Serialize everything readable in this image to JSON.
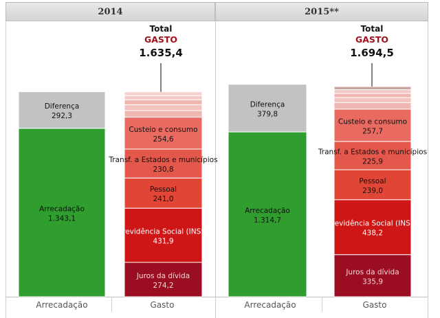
{
  "chart_data": [
    {
      "type": "bar",
      "title": "2014",
      "categories": [
        "Arrecadação",
        "Gasto"
      ],
      "arrecadacao": [
        {
          "name": "Arrecadação",
          "value_label": "1.343,1",
          "value": 1343.1,
          "color": "#2f9e2f",
          "text_color": "#111111"
        },
        {
          "name": "Diferença",
          "value_label": "292,3",
          "value": 292.3,
          "color": "#c2c2c2",
          "text_color": "#111111"
        }
      ],
      "gasto": [
        {
          "name": "Juros da dívida",
          "value_label": "274,2",
          "value": 274.2,
          "color": "#9b0e22",
          "text_color": "#f4d6d6"
        },
        {
          "name": "Previdência Social (INSS)",
          "value_label": "431,9",
          "value": 431.9,
          "color": "#cf1616",
          "text_color": "#ffffff"
        },
        {
          "name": "Pessoal",
          "value_label": "241,0",
          "value": 241.0,
          "color": "#e04535",
          "text_color": "#111111"
        },
        {
          "name": "Transf. a Estados e municípios",
          "value_label": "230,8",
          "value": 230.8,
          "color": "#e4574b",
          "text_color": "#111111"
        },
        {
          "name": "Custeio e consumo",
          "value_label": "254,6",
          "value": 254.6,
          "color": "#e86a60",
          "text_color": "#111111"
        },
        {
          "name": "",
          "value": 52.0,
          "color": "#f0b6b2"
        },
        {
          "name": "",
          "value": 47.0,
          "color": "#f3c3bf"
        },
        {
          "name": "",
          "value": 40.0,
          "color": "#f0b6b2"
        },
        {
          "name": "",
          "value": 33.0,
          "color": "#f4c9c5"
        },
        {
          "name": "",
          "value": 30.0,
          "color": "#f6d2cf"
        }
      ],
      "total_label": "Total",
      "total_sub": "GASTO",
      "total_value": "1.635,4",
      "total": 1635.4
    },
    {
      "type": "bar",
      "title": "2015**",
      "categories": [
        "Arrecadação",
        "Gasto"
      ],
      "arrecadacao": [
        {
          "name": "Arrecadação",
          "value_label": "1.314,7",
          "value": 1314.7,
          "color": "#2f9e2f",
          "text_color": "#111111"
        },
        {
          "name": "Diferença",
          "value_label": "379,8",
          "value": 379.8,
          "color": "#c2c2c2",
          "text_color": "#111111"
        }
      ],
      "gasto": [
        {
          "name": "Juros da dívida",
          "value_label": "335,9",
          "value": 335.9,
          "color": "#9b0e22",
          "text_color": "#f4d6d6"
        },
        {
          "name": "Previdência Social (INSS)",
          "value_label": "438,2",
          "value": 438.2,
          "color": "#cf1616",
          "text_color": "#ffffff"
        },
        {
          "name": "Pessoal",
          "value_label": "239,0",
          "value": 239.0,
          "color": "#e04535",
          "text_color": "#111111"
        },
        {
          "name": "Transf. a Estados e municípios",
          "value_label": "225,9",
          "value": 225.9,
          "color": "#e4574b",
          "text_color": "#111111"
        },
        {
          "name": "Custeio e consumo",
          "value_label": "257,7",
          "value": 257.7,
          "color": "#e86a60",
          "text_color": "#111111"
        },
        {
          "name": "",
          "value": 52.0,
          "color": "#f0b6b2"
        },
        {
          "name": "",
          "value": 40.0,
          "color": "#f3c3bf"
        },
        {
          "name": "",
          "value": 33.0,
          "color": "#f0b6b2"
        },
        {
          "name": "",
          "value": 30.0,
          "color": "#f4c9c5"
        },
        {
          "name": "",
          "value": 25.0,
          "color": "#c8a59f"
        }
      ],
      "total_label": "Total",
      "total_sub": "GASTO",
      "total_value": "1.694,5",
      "total": 1694.5
    }
  ],
  "colors": {
    "total_sub": "#a0101c"
  }
}
